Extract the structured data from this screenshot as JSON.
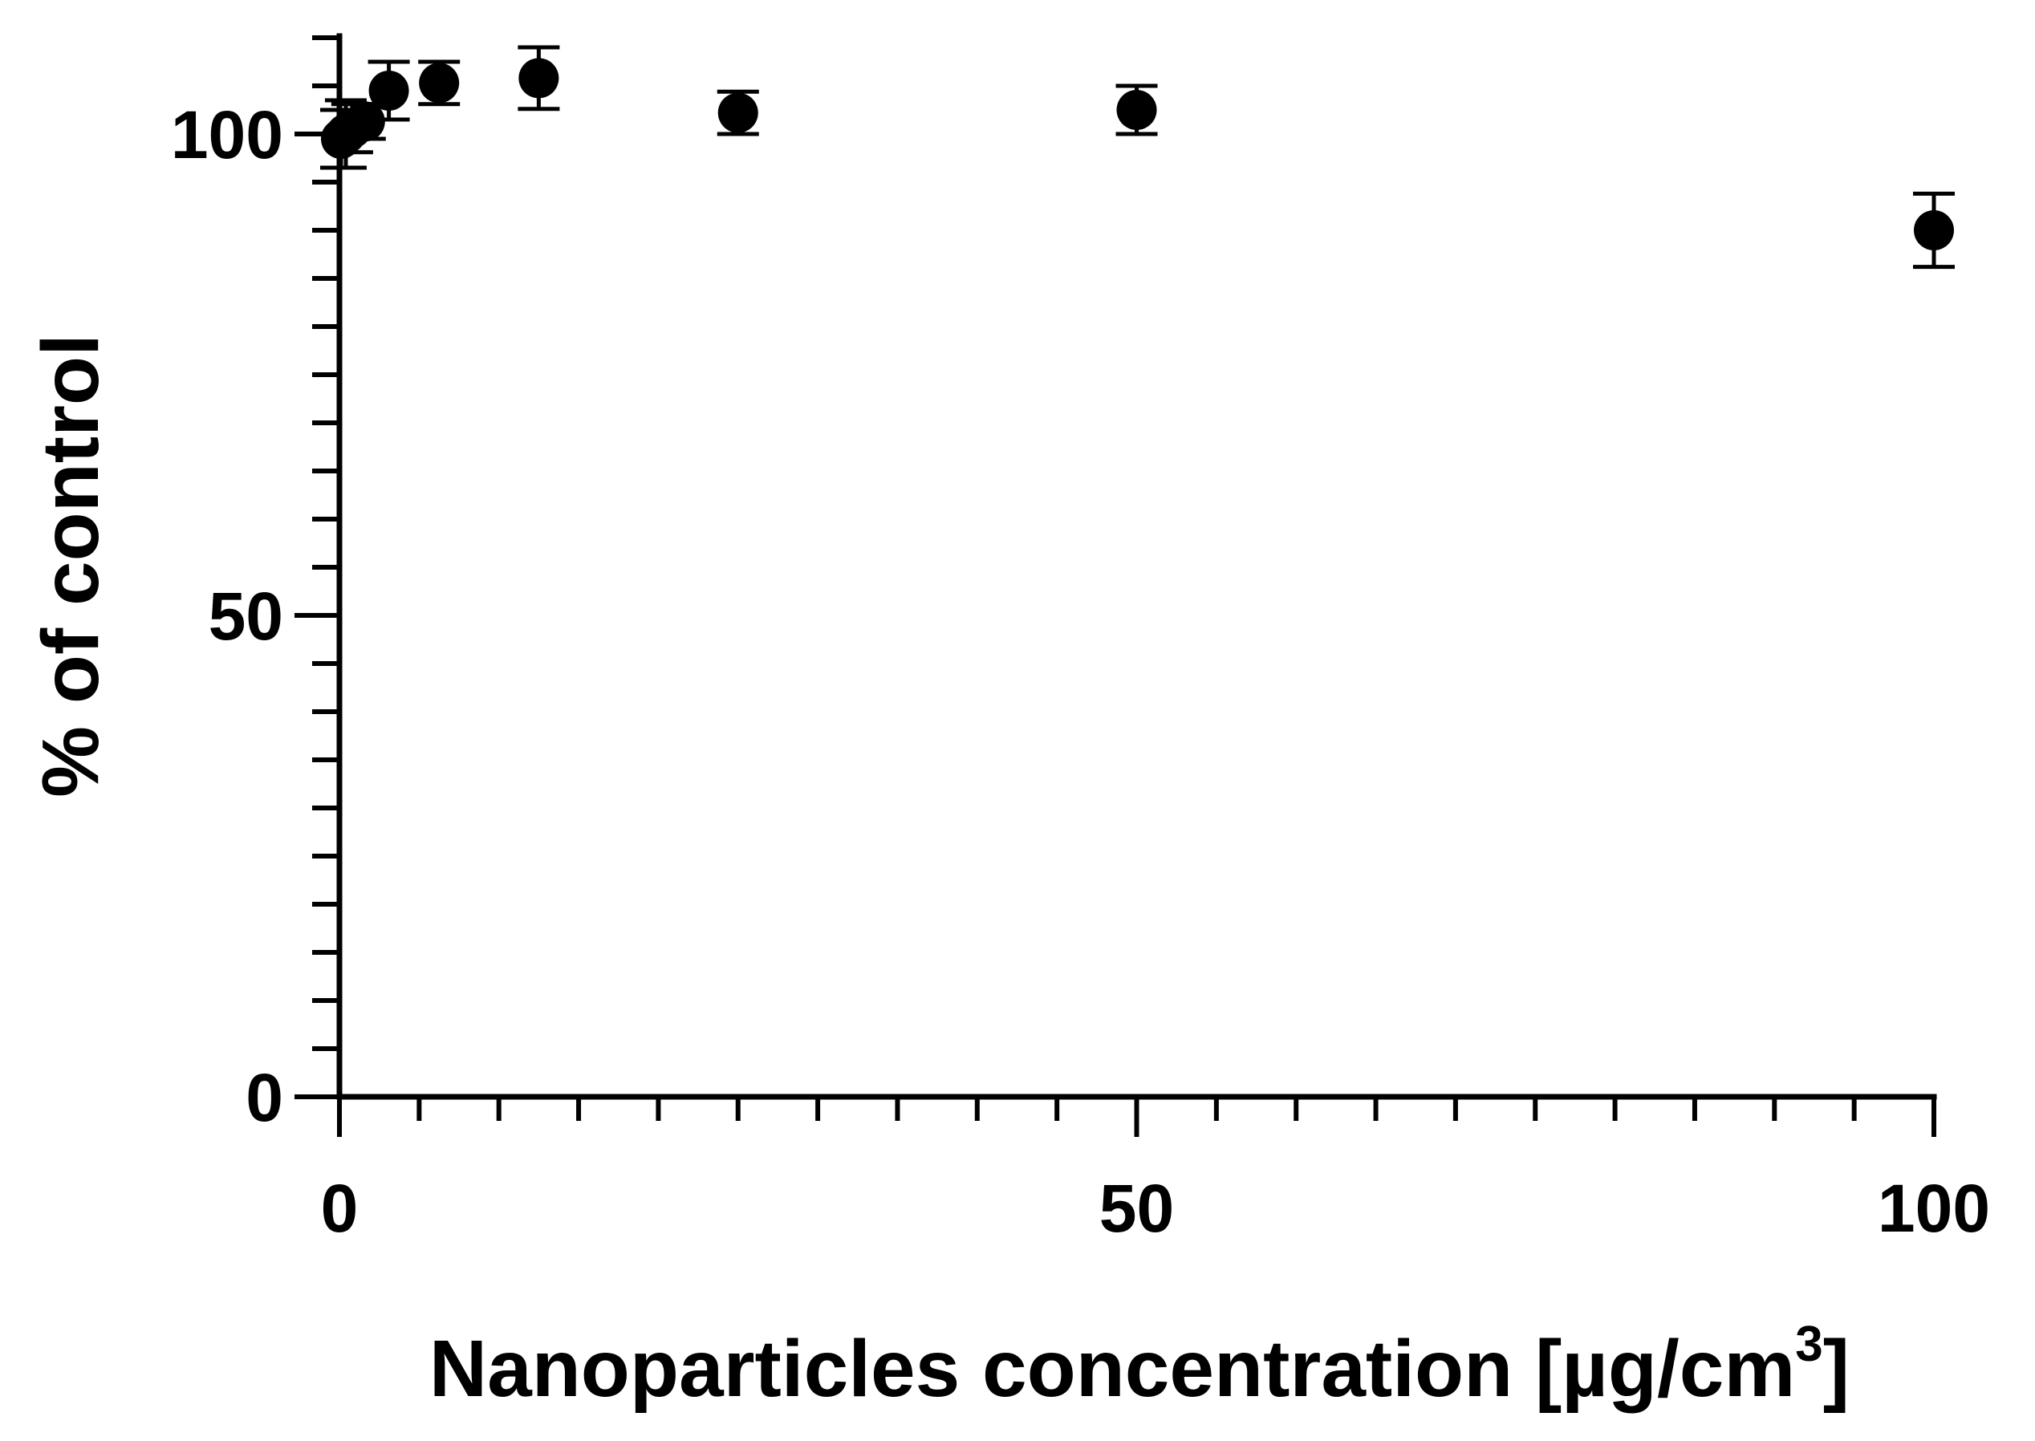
{
  "chart_data": {
    "type": "scatter",
    "xlabel": "Nanoparticles concentration [µg/cm",
    "xlabel_superscript": "3",
    "xlabel_suffix": "]",
    "ylabel": "% of control",
    "xlim": [
      0,
      100
    ],
    "ylim": [
      0,
      110
    ],
    "x_ticks_major": [
      0,
      50,
      100
    ],
    "x_tick_labels": [
      "0",
      "50",
      "100"
    ],
    "x_minor_step": 5,
    "y_ticks_major": [
      0,
      50,
      100
    ],
    "y_tick_labels": [
      "0",
      "50",
      "100"
    ],
    "y_minor_step": 5,
    "grid": false,
    "series": [
      {
        "marker": "circle",
        "color": "#000000",
        "points": [
          {
            "x": 0.1,
            "y": 99.5,
            "err": 3.0
          },
          {
            "x": 0.4,
            "y": 100.0,
            "err": 3.5
          },
          {
            "x": 0.8,
            "y": 100.6,
            "err": 2.5
          },
          {
            "x": 1.6,
            "y": 101.3,
            "err": 1.8
          },
          {
            "x": 3.1,
            "y": 104.5,
            "err": 3.0
          },
          {
            "x": 6.25,
            "y": 105.3,
            "err": 2.2
          },
          {
            "x": 12.5,
            "y": 105.8,
            "err": 3.2
          },
          {
            "x": 25,
            "y": 102.2,
            "err": 2.2
          },
          {
            "x": 50,
            "y": 102.5,
            "err": 2.5
          },
          {
            "x": 100,
            "y": 90.0,
            "err": 3.8
          }
        ]
      }
    ]
  }
}
